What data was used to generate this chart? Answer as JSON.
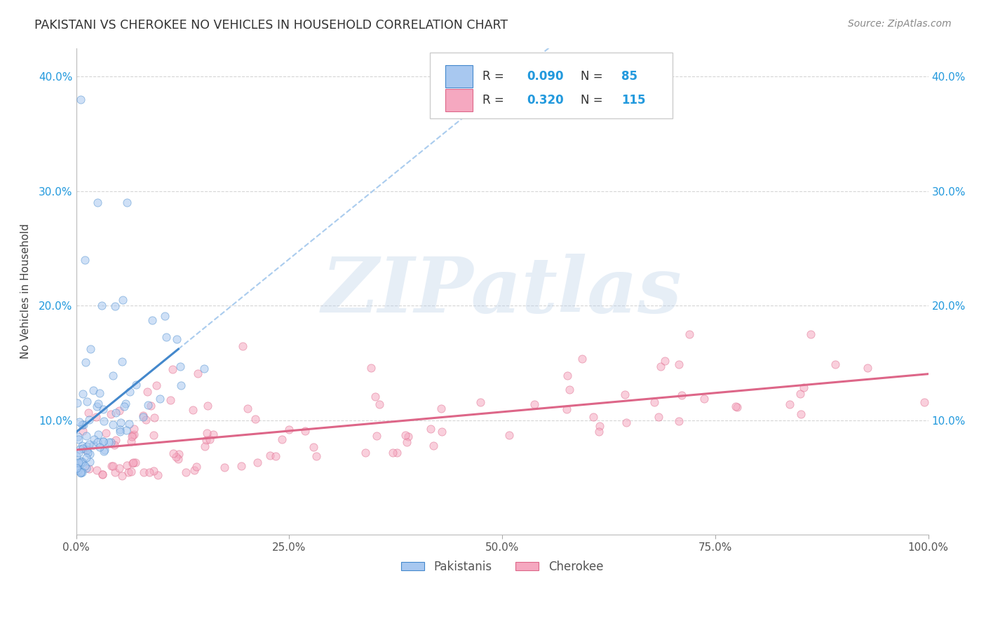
{
  "title": "PAKISTANI VS CHEROKEE NO VEHICLES IN HOUSEHOLD CORRELATION CHART",
  "source": "Source: ZipAtlas.com",
  "ylabel": "No Vehicles in Household",
  "watermark": "ZIPatlas",
  "legend_label_1": "Pakistanis",
  "legend_label_2": "Cherokee",
  "R1": 0.09,
  "N1": 85,
  "R2": 0.32,
  "N2": 115,
  "xlim": [
    0.0,
    1.0
  ],
  "ylim": [
    0.0,
    0.425
  ],
  "xticks": [
    0.0,
    0.25,
    0.5,
    0.75,
    1.0
  ],
  "xtick_labels": [
    "0.0%",
    "25.0%",
    "50.0%",
    "75.0%",
    "100.0%"
  ],
  "yticks": [
    0.0,
    0.1,
    0.2,
    0.3,
    0.4
  ],
  "ytick_labels": [
    "",
    "10.0%",
    "20.0%",
    "30.0%",
    "40.0%"
  ],
  "color_pakistani": "#a8c8f0",
  "color_cherokee": "#f5a8c0",
  "trendline_pakistani": "#4488cc",
  "trendline_cherokee": "#dd6688",
  "trendline_dashed_color": "#aaccee",
  "background_color": "#ffffff",
  "grid_color": "#cccccc",
  "title_color": "#333333",
  "source_color": "#888888",
  "legend_text_color": "#2299dd",
  "scatter_alpha": 0.55,
  "scatter_size": 65
}
